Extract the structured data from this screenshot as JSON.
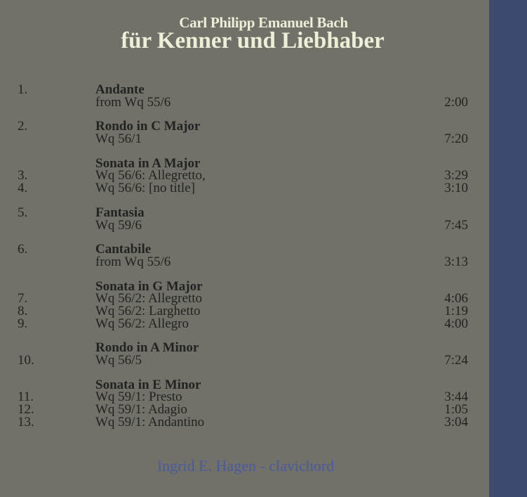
{
  "header": {
    "composer": "Carl Philipp Emanuel Bach",
    "album": "für Kenner und Liebhaber"
  },
  "groups": [
    {
      "number": "1.",
      "title": "Andante",
      "lines": [
        {
          "num": "",
          "text": "from Wq 55/6",
          "time": "2:00"
        }
      ]
    },
    {
      "number": "2.",
      "title": "Rondo in C Major",
      "lines": [
        {
          "num": "",
          "text": "Wq 56/1",
          "time": "7:20"
        }
      ]
    },
    {
      "number": "",
      "title": "Sonata in A Major",
      "lines": [
        {
          "num": "3.",
          "text": "Wq 56/6: Allegretto,",
          "time": "3:29"
        },
        {
          "num": "4.",
          "text": "Wq 56/6: [no title]",
          "time": "3:10"
        }
      ]
    },
    {
      "number": "5.",
      "title": "Fantasia",
      "lines": [
        {
          "num": "",
          "text": "Wq 59/6",
          "time": "7:45"
        }
      ]
    },
    {
      "number": "6.",
      "title": "Cantabile",
      "lines": [
        {
          "num": "",
          "text": "from Wq 55/6",
          "time": "3:13"
        }
      ]
    },
    {
      "number": "",
      "title": "Sonata in G Major",
      "lines": [
        {
          "num": "7.",
          "text": "Wq 56/2: Allegretto",
          "time": "4:06"
        },
        {
          "num": "8.",
          "text": "Wq 56/2: Larghetto",
          "time": "1:19"
        },
        {
          "num": "9.",
          "text": "Wq 56/2: Allegro",
          "time": "4:00"
        }
      ]
    },
    {
      "number": "",
      "title": "Rondo in A Minor",
      "lines": [
        {
          "num": "10.",
          "text": "Wq 56/5",
          "time": "7:24"
        }
      ]
    },
    {
      "number": "",
      "title": "Sonata in E Minor",
      "lines": [
        {
          "num": "11.",
          "text": "Wq 59/1: Presto",
          "time": "3:44"
        },
        {
          "num": "12.",
          "text": "Wq 59/1: Adagio",
          "time": "1:05"
        },
        {
          "num": "13.",
          "text": "Wq 59/1: Andantino",
          "time": "3:04"
        }
      ]
    }
  ],
  "footer": {
    "performer": "Ingrid E. Hagen - clavichord"
  },
  "colors": {
    "background": "#717169",
    "strip": "#3e4a6e",
    "title": "#efefd8",
    "text": "#222222",
    "performer": "#4a5a9c"
  }
}
